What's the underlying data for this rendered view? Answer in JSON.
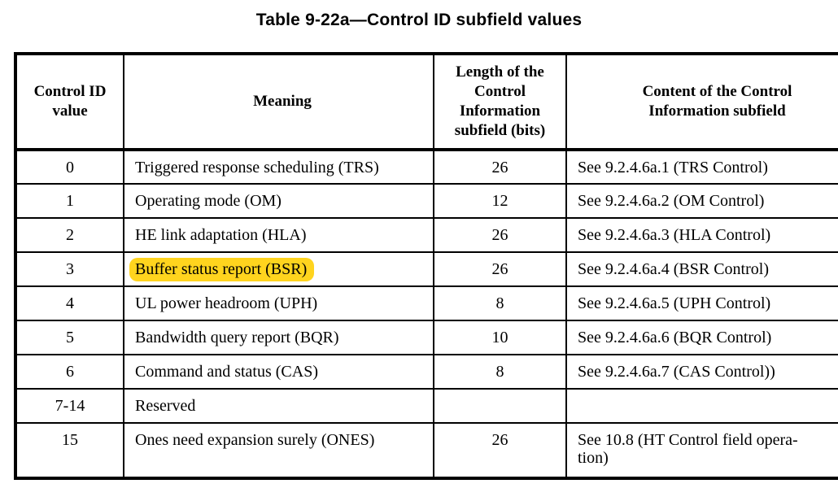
{
  "title": "Table 9-22a—Control ID subfield values",
  "colors": {
    "highlight": "#FFD41E",
    "border": "#000000",
    "text": "#000000"
  },
  "table": {
    "headers": [
      "Control ID value",
      "Meaning",
      "Length of the Control Information subfield (bits)",
      "Content of the Control Information subfield"
    ],
    "rows": [
      {
        "value": "0",
        "meaning": "Triggered response scheduling (TRS)",
        "length": "26",
        "content": "See 9.2.4.6a.1 (TRS Control)",
        "highlight": false
      },
      {
        "value": "1",
        "meaning": "Operating mode (OM)",
        "length": "12",
        "content": "See 9.2.4.6a.2 (OM Control)",
        "highlight": false
      },
      {
        "value": "2",
        "meaning": "HE link adaptation (HLA)",
        "length": "26",
        "content": "See 9.2.4.6a.3 (HLA Control)",
        "highlight": false
      },
      {
        "value": "3",
        "meaning": "Buffer status report (BSR)",
        "length": "26",
        "content": "See 9.2.4.6a.4 (BSR Control)",
        "highlight": true
      },
      {
        "value": "4",
        "meaning": "UL power headroom (UPH)",
        "length": "8",
        "content": "See 9.2.4.6a.5 (UPH Control)",
        "highlight": false
      },
      {
        "value": "5",
        "meaning": "Bandwidth query report (BQR)",
        "length": "10",
        "content": "See 9.2.4.6a.6 (BQR Control)",
        "highlight": false
      },
      {
        "value": "6",
        "meaning": "Command and status (CAS)",
        "length": "8",
        "content": "See 9.2.4.6a.7 (CAS Control))",
        "highlight": false
      },
      {
        "value": "7-14",
        "meaning": "Reserved",
        "length": "",
        "content": "",
        "highlight": false
      },
      {
        "value": "15",
        "meaning": "Ones need expansion surely (ONES)",
        "length": "26",
        "content": "See 10.8 (HT Control field opera-\ntion)",
        "highlight": false
      }
    ]
  }
}
